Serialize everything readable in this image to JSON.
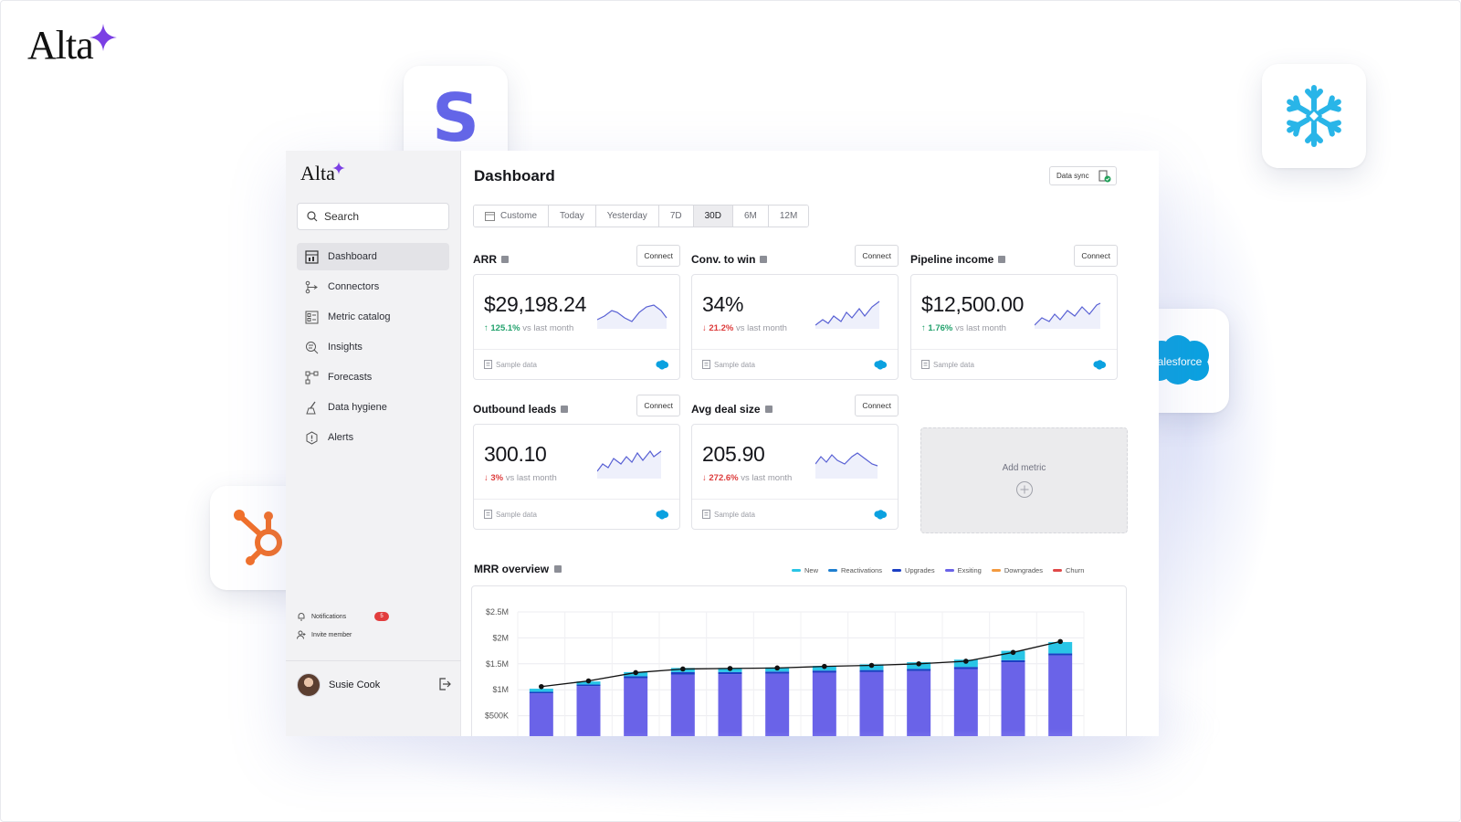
{
  "brand": {
    "name": "Alta"
  },
  "integrations": [
    "stripe-logo",
    "snowflake-logo",
    "salesforce-logo",
    "hubspot-logo"
  ],
  "salesforce_text": "salesforce",
  "sidebar": {
    "logo": "Alta",
    "search_placeholder": "Search",
    "items": [
      {
        "label": "Dashboard",
        "icon": "dashboard-icon",
        "active": true
      },
      {
        "label": "Connectors",
        "icon": "connectors-icon"
      },
      {
        "label": "Metric catalog",
        "icon": "metric-catalog-icon"
      },
      {
        "label": "Insights",
        "icon": "insights-icon"
      },
      {
        "label": "Forecasts",
        "icon": "forecasts-icon"
      },
      {
        "label": "Data hygiene",
        "icon": "data-hygiene-icon"
      },
      {
        "label": "Alerts",
        "icon": "alerts-icon"
      }
    ],
    "notifications_label": "Notifications",
    "notifications_count": "5",
    "invite_label": "Invite member",
    "user_name": "Susie Cook"
  },
  "header": {
    "title": "Dashboard",
    "sync_label": "Data sync"
  },
  "ranges": [
    {
      "label": "Custome"
    },
    {
      "label": "Today"
    },
    {
      "label": "Yesterday"
    },
    {
      "label": "7D"
    },
    {
      "label": "30D",
      "active": true
    },
    {
      "label": "6M"
    },
    {
      "label": "12M"
    }
  ],
  "cards": [
    {
      "name": "ARR",
      "connect": "Connect",
      "value": "$29,198.24",
      "change": "125.1%",
      "dir": "up",
      "vs": "vs last month",
      "foot": "Sample data"
    },
    {
      "name": "Conv. to win",
      "connect": "Connect",
      "value": "34%",
      "change": "21.2%",
      "dir": "down",
      "vs": "vs last month",
      "foot": "Sample data"
    },
    {
      "name": "Pipeline income",
      "connect": "Connect",
      "value": "$12,500.00",
      "change": "1.76%",
      "dir": "up",
      "vs": "vs last month",
      "foot": "Sample data"
    },
    {
      "name": "Outbound leads",
      "connect": "Connect",
      "value": "300.10",
      "change": "3%",
      "dir": "down",
      "vs": "vs last month",
      "foot": "Sample data"
    },
    {
      "name": "Avg deal size",
      "connect": "Connect",
      "value": "205.90",
      "change": "272.6%",
      "dir": "down",
      "vs": "vs last month",
      "foot": "Sample data"
    }
  ],
  "add_metric_label": "Add metric",
  "colors": {
    "new": "#29c5e6",
    "reactivations": "#1f7fd0",
    "upgrades": "#1b3fc4",
    "existing": "#6a63e8",
    "downgrades": "#f39a3f",
    "churn": "#e04848",
    "up": "#23a26d",
    "down": "#dd3b3b"
  },
  "chart_data": {
    "type": "bar",
    "title": "MRR overview",
    "legend": [
      "New",
      "Reactivations",
      "Upgrades",
      "Exsiting",
      "Downgrades",
      "Churn"
    ],
    "legend_position": "top-right",
    "y_ticks": [
      "$2.5M",
      "$2M",
      "$1.5M",
      "$1M",
      "$500K"
    ],
    "ylim": [
      0,
      2500000
    ],
    "grid": true,
    "series": [
      {
        "name": "Exsiting",
        "values": [
          930000,
          1070000,
          1220000,
          1290000,
          1300000,
          1310000,
          1330000,
          1340000,
          1360000,
          1400000,
          1530000,
          1660000
        ]
      },
      {
        "name": "Upgrades",
        "values": [
          30000,
          30000,
          40000,
          50000,
          40000,
          40000,
          40000,
          40000,
          40000,
          40000,
          40000,
          40000
        ]
      },
      {
        "name": "New",
        "values": [
          60000,
          60000,
          80000,
          80000,
          80000,
          80000,
          90000,
          110000,
          130000,
          140000,
          180000,
          220000
        ]
      }
    ],
    "line": [
      1060000,
      1170000,
      1330000,
      1400000,
      1410000,
      1420000,
      1450000,
      1470000,
      1500000,
      1550000,
      1720000,
      1930000
    ]
  }
}
